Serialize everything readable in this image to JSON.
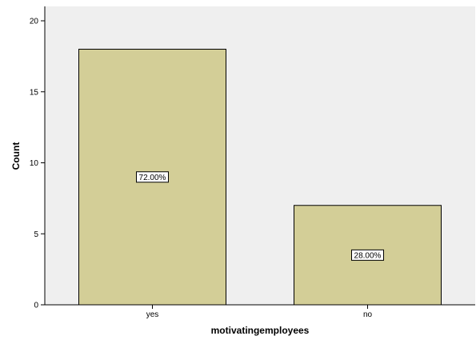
{
  "chart_data": {
    "type": "bar",
    "categories": [
      "yes",
      "no"
    ],
    "values": [
      18,
      7
    ],
    "data_labels": [
      "72.00%",
      "28.00%"
    ],
    "title": "",
    "xlabel": "motivatingemployees",
    "ylabel": "Count",
    "ylim": [
      0,
      20
    ],
    "yticks": [
      0,
      5,
      10,
      15,
      20
    ],
    "grid": false,
    "legend": "none",
    "colors": {
      "plot_background": "#efefef",
      "bar_fill": "#d3ce97",
      "bar_stroke": "#000000",
      "label_box_fill": "#ffffff"
    }
  }
}
